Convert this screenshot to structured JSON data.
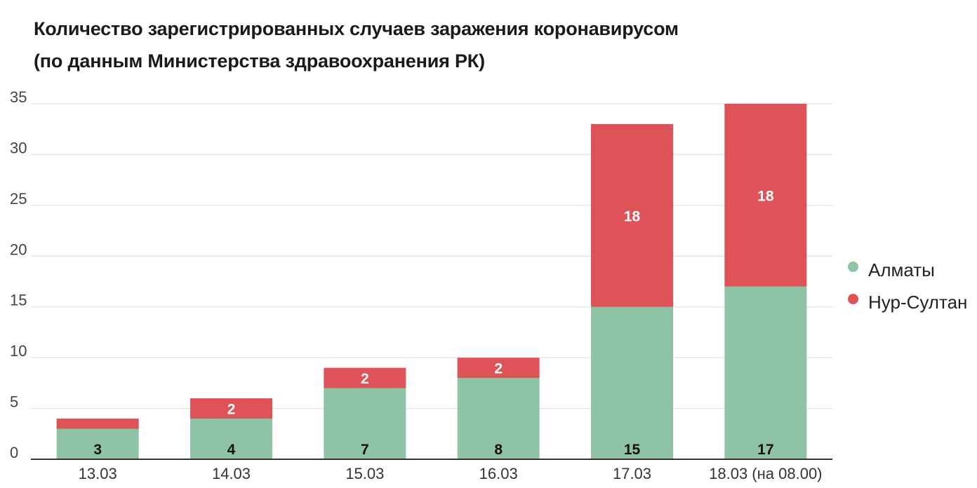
{
  "title_line1": "Количество зарегистрированных случаев заражения коронавирусом",
  "title_line2": "(по данным Министерства здравоохранения РК)",
  "chart_data": {
    "type": "bar",
    "stacked": true,
    "categories": [
      "13.03",
      "14.03",
      "15.03",
      "16.03",
      "17.03",
      "18.03 (на 08.00)"
    ],
    "series": [
      {
        "name": "Алматы",
        "color": "#8fc3a6",
        "values": [
          3,
          4,
          7,
          8,
          15,
          17
        ],
        "labels": [
          "3",
          "4",
          "7",
          "8",
          "15",
          "17"
        ]
      },
      {
        "name": "Нур-Султан",
        "color": "#dd5357",
        "values": [
          1,
          2,
          2,
          2,
          18,
          18
        ],
        "labels": [
          "",
          "2",
          "2",
          "2",
          "18",
          "18"
        ]
      }
    ],
    "yticks": [
      0,
      5,
      10,
      15,
      20,
      25,
      30,
      35
    ],
    "ylim": [
      0,
      35
    ],
    "grid": true,
    "legend": "right"
  }
}
